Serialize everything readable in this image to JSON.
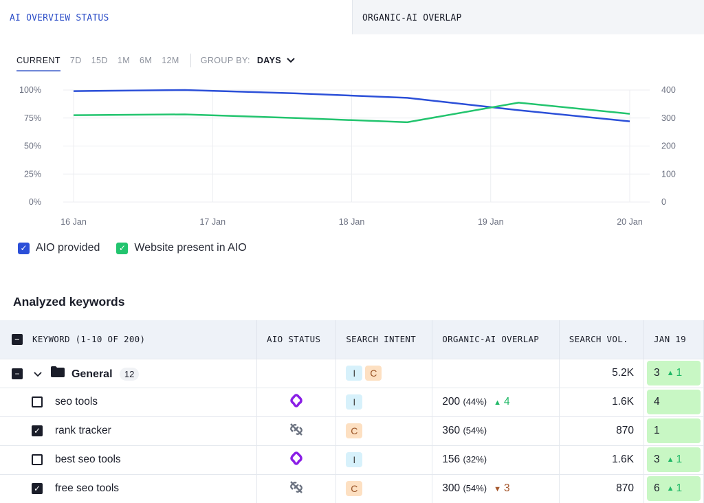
{
  "tabs": [
    {
      "label": "AI OVERVIEW STATUS",
      "active": true
    },
    {
      "label": "ORGANIC-AI OVERLAP",
      "active": false
    }
  ],
  "periods": [
    "CURRENT",
    "7D",
    "15D",
    "1M",
    "6M",
    "12M"
  ],
  "group_by": {
    "label": "GROUP BY:",
    "value": "DAYS"
  },
  "chart_data": {
    "type": "line",
    "x_labels": [
      "16 Jan",
      "17 Jan",
      "18 Jan",
      "19 Jan",
      "20 Jan"
    ],
    "x_days": [
      0,
      0.8,
      1.6,
      2.4,
      3.2,
      4
    ],
    "left_ticks": [
      "0%",
      "25%",
      "50%",
      "75%",
      "100%"
    ],
    "right_ticks": [
      "0",
      "100",
      "200",
      "300",
      "400"
    ],
    "ylim_left": [
      0,
      100
    ],
    "ylim_right": [
      0,
      400
    ],
    "series": [
      {
        "name": "AIO provided",
        "axis": "left",
        "color": "#2b4fd8",
        "values": [
          99,
          100,
          97,
          93,
          82,
          72
        ]
      },
      {
        "name": "Website present in AIO",
        "axis": "right",
        "color": "#22c46e",
        "values": [
          310,
          313,
          300,
          285,
          355,
          315
        ]
      }
    ]
  },
  "section_title": "Analyzed keywords",
  "columns": [
    "KEYWORD (1-10 OF 200)",
    "AIO STATUS",
    "SEARCH INTENT",
    "ORGANIC-AI OVERLAP",
    "SEARCH VOL.",
    "JAN 19"
  ],
  "group": {
    "name": "General",
    "count": "12",
    "intents": [
      "I",
      "C"
    ],
    "volume": "5.2K",
    "rank": "3",
    "rank_change": "1"
  },
  "rows": [
    {
      "keyword": "seo tools",
      "checked": false,
      "aio": "present",
      "intent": "I",
      "overlap": "200",
      "overlap_pct": "(44%)",
      "change": "4",
      "dir": "up",
      "volume": "1.6K",
      "rank": "4",
      "rank_change": ""
    },
    {
      "keyword": "rank tracker",
      "checked": true,
      "aio": "absent",
      "intent": "C",
      "overlap": "360",
      "overlap_pct": "(54%)",
      "change": "",
      "dir": "",
      "volume": "870",
      "rank": "1",
      "rank_change": ""
    },
    {
      "keyword": "best seo tools",
      "checked": false,
      "aio": "present",
      "intent": "I",
      "overlap": "156",
      "overlap_pct": "(32%)",
      "change": "",
      "dir": "",
      "volume": "1.6K",
      "rank": "3",
      "rank_change": "1"
    },
    {
      "keyword": "free seo tools",
      "checked": true,
      "aio": "absent",
      "intent": "C",
      "overlap": "300",
      "overlap_pct": "(54%)",
      "change": "3",
      "dir": "down",
      "volume": "870",
      "rank": "6",
      "rank_change": "1"
    }
  ]
}
